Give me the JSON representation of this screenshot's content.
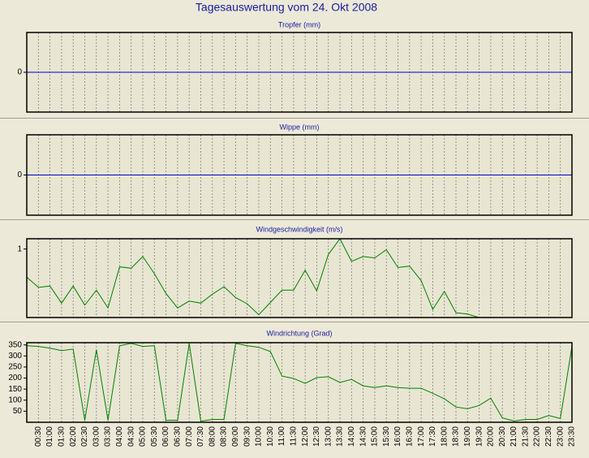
{
  "title": "Tagesauswertung vom 24. Okt 2008",
  "chart_data": [
    {
      "type": "line",
      "title": "Tropfer (mm)",
      "ylim": [
        -1,
        1
      ],
      "yticks": [
        0
      ],
      "color": "#0000cc",
      "values": [
        0,
        0,
        0,
        0,
        0,
        0,
        0,
        0,
        0,
        0,
        0,
        0,
        0,
        0,
        0,
        0,
        0,
        0,
        0,
        0,
        0,
        0,
        0,
        0,
        0,
        0,
        0,
        0,
        0,
        0,
        0,
        0,
        0,
        0,
        0,
        0,
        0,
        0,
        0,
        0,
        0,
        0,
        0,
        0,
        0,
        0,
        0,
        0
      ]
    },
    {
      "type": "line",
      "title": "Wippe (mm)",
      "ylim": [
        -1,
        1
      ],
      "yticks": [
        0
      ],
      "color": "#0000cc",
      "values": [
        0,
        0,
        0,
        0,
        0,
        0,
        0,
        0,
        0,
        0,
        0,
        0,
        0,
        0,
        0,
        0,
        0,
        0,
        0,
        0,
        0,
        0,
        0,
        0,
        0,
        0,
        0,
        0,
        0,
        0,
        0,
        0,
        0,
        0,
        0,
        0,
        0,
        0,
        0,
        0,
        0,
        0,
        0,
        0,
        0,
        0,
        0,
        0
      ]
    },
    {
      "type": "line",
      "title": "Windgeschwindigkeit (m/s)",
      "ylim": [
        0,
        1.15
      ],
      "yticks": [
        1
      ],
      "color": "#008000",
      "values": [
        0.59,
        0.44,
        0.46,
        0.21,
        0.46,
        0.18,
        0.4,
        0.14,
        0.74,
        0.72,
        0.89,
        0.64,
        0.35,
        0.14,
        0.24,
        0.21,
        0.34,
        0.45,
        0.29,
        0.2,
        0.04,
        0.22,
        0.4,
        0.4,
        0.69,
        0.39,
        0.92,
        1.15,
        0.82,
        0.89,
        0.87,
        0.99,
        0.73,
        0.75,
        0.54,
        0.12,
        0.38,
        0.07,
        0.05,
        0,
        null,
        null,
        null,
        null,
        null,
        null,
        null,
        null
      ]
    },
    {
      "type": "line",
      "title": "Windrichtung (Grad)",
      "ylim": [
        0,
        360
      ],
      "yticks": [
        50,
        100,
        150,
        200,
        250,
        300,
        350
      ],
      "color": "#008000",
      "values": [
        346,
        343,
        335,
        324,
        331,
        9,
        328,
        9,
        346,
        357,
        343,
        346,
        9,
        9,
        357,
        5,
        13,
        13,
        357,
        346,
        339,
        320,
        209,
        198,
        176,
        202,
        206,
        180,
        194,
        165,
        157,
        165,
        157,
        154,
        154,
        131,
        106,
        69,
        61,
        76,
        109,
        20,
        6,
        13,
        13,
        31,
        17,
        343
      ],
      "categories": [
        null,
        "00:30",
        "01:00",
        "01:30",
        "02:00",
        "02:30",
        "03:00",
        "03:30",
        "04:00",
        "04:30",
        "05:00",
        "05:30",
        "06:00",
        "06:30",
        "07:00",
        "07:30",
        "08:00",
        "08:30",
        "09:00",
        "09:30",
        "10:00",
        "10:30",
        "11:00",
        "11:30",
        "12:00",
        "12:30",
        "13:00",
        "13:30",
        "14:00",
        "14:30",
        "15:00",
        "15:30",
        "16:00",
        "16:30",
        "17:00",
        "17:30",
        "18:00",
        "18:30",
        "19:00",
        "19:30",
        "20:00",
        "20:30",
        "21:00",
        "21:30",
        "22:00",
        "22:30",
        "23:00",
        "23:30"
      ]
    }
  ]
}
